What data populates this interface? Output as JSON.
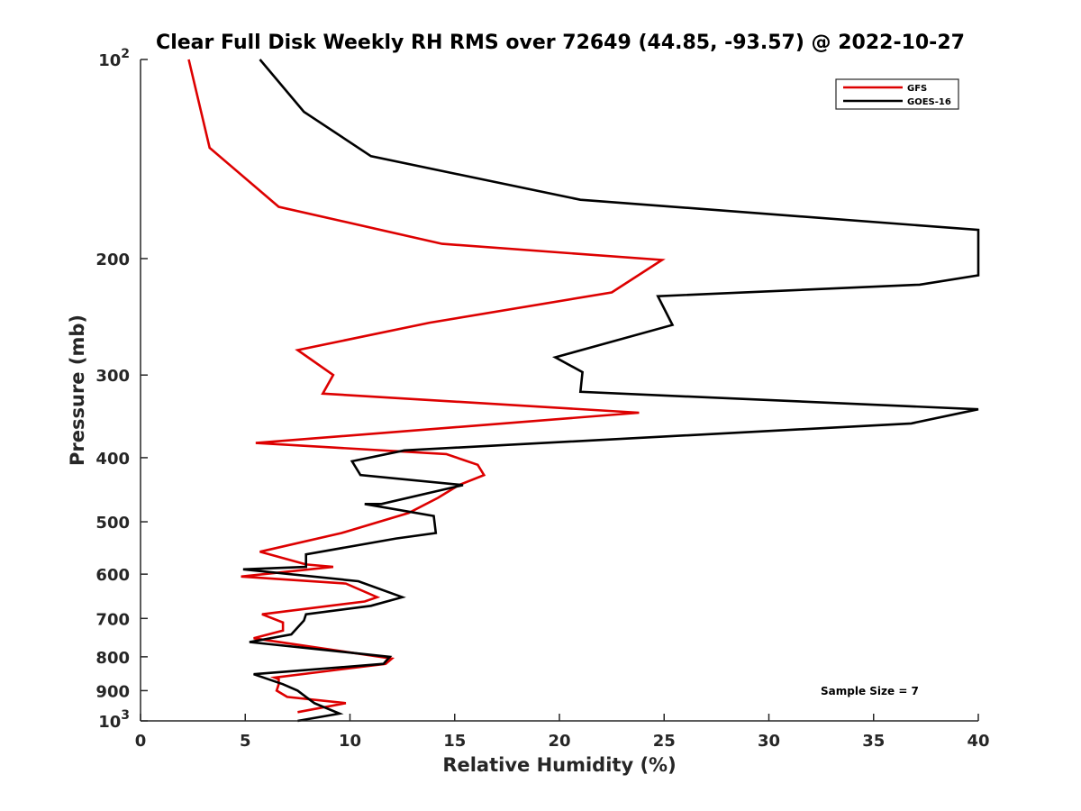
{
  "chart_data": {
    "type": "line",
    "title": "Clear Full Disk Weekly RH RMS over 72649 (44.85, -93.57) @ 2022-10-27",
    "xlabel": "Relative Humidity (%)",
    "ylabel": "Pressure (mb)",
    "xlim": [
      0,
      40
    ],
    "ylim": [
      100,
      1000
    ],
    "yscale": "log",
    "y_reversed": true,
    "grid": false,
    "legend_position": "top-right",
    "x_ticks": [
      "0",
      "5",
      "10",
      "15",
      "20",
      "25",
      "30",
      "35",
      "40"
    ],
    "y_ticks": [
      {
        "value": 100,
        "base": "10",
        "exp": "2"
      },
      {
        "value": 200,
        "label": "200"
      },
      {
        "value": 300,
        "label": "300"
      },
      {
        "value": 400,
        "label": "400"
      },
      {
        "value": 500,
        "label": "500"
      },
      {
        "value": 600,
        "label": "600"
      },
      {
        "value": 700,
        "label": "700"
      },
      {
        "value": 800,
        "label": "800"
      },
      {
        "value": 900,
        "label": "900"
      },
      {
        "value": 1000,
        "base": "10",
        "exp": "3"
      }
    ],
    "annotation": "Sample Size = 7",
    "series": [
      {
        "name": "GFS",
        "color": "#dd0000",
        "x": [
          2.3,
          3.3,
          6.6,
          14.4,
          24.9,
          22.5,
          13.8,
          7.5,
          9.2,
          8.7,
          23.8,
          5.5,
          14.6,
          16.1,
          16.4,
          15.2,
          14.2,
          12.8,
          9.6,
          5.7,
          7.9,
          9.2,
          4.8,
          9.8,
          11.3,
          10.7,
          5.8,
          6.8,
          6.8,
          5.4,
          12.0,
          11.7,
          6.4,
          6.6,
          6.6,
          6.5,
          7.0,
          9.8,
          7.5
        ],
        "y": [
          100,
          136,
          167,
          190,
          201,
          225,
          250,
          275,
          300,
          320,
          342,
          380,
          395,
          410,
          425,
          440,
          460,
          485,
          520,
          555,
          580,
          585,
          605,
          620,
          650,
          660,
          690,
          710,
          730,
          750,
          805,
          820,
          860,
          865,
          880,
          900,
          920,
          940,
          970
        ]
      },
      {
        "name": "GOES-16",
        "color": "#000000",
        "x": [
          5.7,
          7.8,
          11.0,
          21.0,
          40.0,
          40.0,
          37.2,
          24.7,
          25.4,
          19.8,
          21.1,
          21.0,
          40.0,
          36.8,
          12.6,
          10.1,
          10.5,
          15.4,
          11.5,
          10.7,
          14.0,
          14.1,
          12.2,
          7.9,
          7.9,
          4.9,
          10.4,
          12.5,
          11.0,
          7.9,
          7.8,
          7.2,
          5.2,
          11.9,
          11.6,
          5.4,
          6.8,
          7.5,
          7.9,
          8.3,
          9.5,
          7.5
        ],
        "y": [
          100,
          120,
          140,
          163,
          181,
          212,
          219,
          228,
          252,
          282,
          297,
          318,
          338,
          355,
          390,
          405,
          425,
          440,
          470,
          470,
          490,
          520,
          530,
          560,
          585,
          590,
          615,
          650,
          670,
          690,
          705,
          740,
          760,
          800,
          820,
          850,
          880,
          900,
          920,
          940,
          975,
          1000
        ]
      }
    ]
  }
}
